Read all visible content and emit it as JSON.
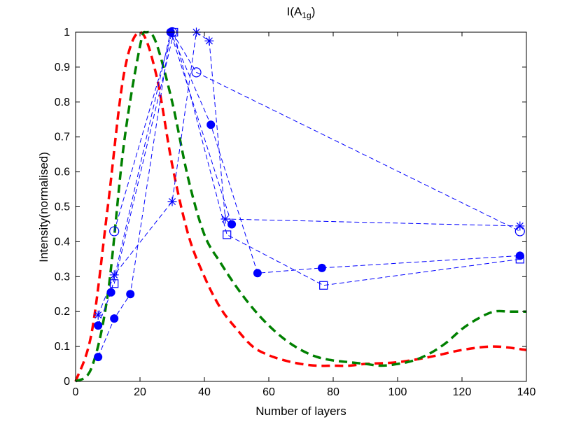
{
  "chart_data": {
    "type": "line",
    "title": "I(A",
    "title_subscript": "1g",
    "title_close": ")",
    "xlabel": "Number of layers",
    "ylabel": "Intensity(normalised)",
    "xlim": [
      0,
      140
    ],
    "ylim": [
      0,
      1
    ],
    "xticks": [
      0,
      20,
      40,
      60,
      80,
      100,
      120,
      140
    ],
    "yticks": [
      0,
      0.1,
      0.2,
      0.3,
      0.4,
      0.5,
      0.6,
      0.7,
      0.8,
      0.9,
      1
    ],
    "grid": false,
    "series": [
      {
        "name": "open-circle-series",
        "style": "dashed",
        "color": "#0000ff",
        "marker": "open-circle",
        "x": [
          12,
          30,
          37.5,
          138
        ],
        "y": [
          0.43,
          1.0,
          0.885,
          0.43
        ]
      },
      {
        "name": "star-series",
        "style": "dashed",
        "color": "#0000ff",
        "marker": "star",
        "x": [
          7,
          12,
          30,
          37.5,
          41.5,
          46.5,
          138
        ],
        "y": [
          0.19,
          0.305,
          0.515,
          1.0,
          0.975,
          0.465,
          0.445
        ]
      },
      {
        "name": "square-series",
        "style": "dashed",
        "color": "#0000ff",
        "marker": "open-square",
        "x": [
          12,
          30.5,
          47,
          77,
          138
        ],
        "y": [
          0.28,
          1.0,
          0.42,
          0.275,
          0.35
        ]
      },
      {
        "name": "filled-circle-series-a",
        "style": "dashed",
        "color": "#0000ff",
        "marker": "filled-circle",
        "x": [
          7,
          11,
          29.5,
          42,
          56.5,
          76.5,
          138
        ],
        "y": [
          0.16,
          0.255,
          1.0,
          0.735,
          0.31,
          0.325,
          0.36
        ]
      },
      {
        "name": "filled-circle-series-b",
        "style": "dashed",
        "color": "#0000ff",
        "marker": "filled-circle",
        "x": [
          7,
          12,
          17,
          29.5,
          48.5
        ],
        "y": [
          0.07,
          0.18,
          0.25,
          1.0,
          0.45
        ]
      },
      {
        "name": "red-model-curve",
        "style": "thick-dashed",
        "color": "#ff0000",
        "marker": "none",
        "x": [
          0,
          5,
          10,
          15,
          20,
          25,
          30,
          35,
          40,
          45,
          50,
          55,
          60,
          65,
          70,
          75,
          80,
          85,
          90,
          100,
          110,
          120,
          130,
          140
        ],
        "y": [
          0,
          0.14,
          0.5,
          0.88,
          1.0,
          0.88,
          0.62,
          0.42,
          0.3,
          0.21,
          0.15,
          0.1,
          0.075,
          0.06,
          0.05,
          0.045,
          0.045,
          0.045,
          0.05,
          0.055,
          0.07,
          0.09,
          0.1,
          0.09
        ]
      },
      {
        "name": "green-model-curve",
        "style": "thick-dashed",
        "color": "#008000",
        "marker": "none",
        "x": [
          0,
          5,
          10,
          15,
          20,
          22,
          25,
          30,
          35,
          40,
          45,
          50,
          55,
          60,
          65,
          70,
          75,
          80,
          85,
          90,
          95,
          100,
          105,
          110,
          115,
          120,
          125,
          130,
          135,
          140
        ],
        "y": [
          0,
          0.04,
          0.25,
          0.68,
          0.96,
          1.0,
          0.97,
          0.8,
          0.58,
          0.42,
          0.34,
          0.27,
          0.21,
          0.16,
          0.12,
          0.09,
          0.07,
          0.06,
          0.055,
          0.05,
          0.045,
          0.05,
          0.06,
          0.08,
          0.11,
          0.15,
          0.18,
          0.2,
          0.2,
          0.2
        ]
      }
    ]
  }
}
